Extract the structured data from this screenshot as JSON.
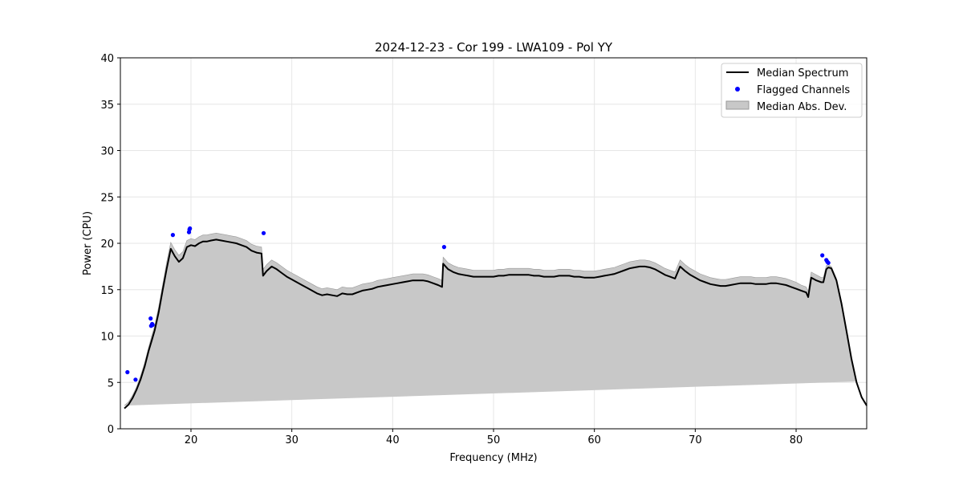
{
  "chart_data": {
    "type": "line",
    "title": "2024-12-23 - Cor 199 - LWA109 - Pol YY",
    "xlabel": "Frequency (MHz)",
    "ylabel": "Power (CPU)",
    "xlim": [
      13.0,
      87.0
    ],
    "ylim": [
      0,
      40
    ],
    "xticks": [
      20,
      30,
      40,
      50,
      60,
      70,
      80
    ],
    "yticks": [
      0,
      5,
      10,
      15,
      20,
      25,
      30,
      35,
      40
    ],
    "grid": true,
    "legend_position": "top-right",
    "colors": {
      "median": "#000000",
      "flagged": "#0000ff",
      "mad": "#c8c8c8",
      "mad_edge": "#999999"
    },
    "legend": [
      {
        "label": "Median Spectrum",
        "kind": "line"
      },
      {
        "label": "Flagged Channels",
        "kind": "marker"
      },
      {
        "label": "Median Abs. Dev.",
        "kind": "patch"
      }
    ],
    "series": [
      {
        "name": "Median Spectrum",
        "x": [
          13.4,
          13.8,
          14.2,
          14.6,
          15.0,
          15.4,
          15.8,
          16.1,
          16.4,
          16.8,
          17.2,
          17.6,
          18.0,
          18.4,
          18.8,
          19.2,
          19.6,
          20.0,
          20.4,
          20.8,
          21.2,
          21.6,
          22.0,
          22.5,
          23.0,
          23.5,
          24.0,
          24.5,
          25.0,
          25.5,
          26.0,
          26.5,
          27.0,
          27.15,
          27.5,
          28.0,
          28.5,
          29.0,
          29.5,
          30.0,
          30.5,
          31.0,
          31.5,
          32.0,
          32.5,
          33.0,
          33.5,
          34.0,
          34.5,
          35.0,
          35.5,
          36.0,
          36.5,
          37.0,
          37.5,
          38.0,
          38.5,
          39.0,
          39.5,
          40.0,
          40.5,
          41.0,
          41.5,
          42.0,
          42.5,
          43.0,
          43.5,
          44.0,
          44.5,
          44.9,
          45.0,
          45.5,
          46.0,
          46.5,
          47.0,
          47.5,
          48.0,
          48.5,
          49.0,
          49.5,
          50.0,
          50.5,
          51.0,
          51.5,
          52.0,
          52.5,
          53.0,
          53.5,
          54.0,
          54.5,
          55.0,
          55.5,
          56.0,
          56.5,
          57.0,
          57.5,
          58.0,
          58.5,
          59.0,
          59.5,
          60.0,
          60.5,
          61.0,
          61.5,
          62.0,
          62.5,
          63.0,
          63.5,
          64.0,
          64.5,
          65.0,
          65.5,
          66.0,
          66.5,
          67.0,
          67.5,
          68.0,
          68.5,
          69.0,
          69.5,
          70.0,
          70.5,
          71.0,
          71.5,
          72.0,
          72.5,
          73.0,
          73.5,
          74.0,
          74.5,
          75.0,
          75.5,
          76.0,
          76.5,
          77.0,
          77.5,
          78.0,
          78.5,
          79.0,
          79.5,
          80.0,
          80.5,
          81.0,
          81.2,
          81.5,
          82.0,
          82.5,
          82.7,
          83.0,
          83.2,
          83.5,
          84.0,
          84.5,
          85.0,
          85.5,
          86.0,
          86.5,
          87.0
        ],
        "y": [
          2.2,
          2.6,
          3.3,
          4.2,
          5.3,
          6.7,
          8.4,
          9.5,
          10.6,
          12.6,
          15.0,
          17.3,
          19.4,
          18.6,
          18.0,
          18.4,
          19.6,
          19.8,
          19.7,
          20.0,
          20.2,
          20.2,
          20.3,
          20.4,
          20.3,
          20.2,
          20.1,
          20.0,
          19.8,
          19.6,
          19.2,
          19.0,
          18.9,
          16.5,
          17.0,
          17.5,
          17.2,
          16.8,
          16.4,
          16.1,
          15.8,
          15.5,
          15.2,
          14.9,
          14.6,
          14.4,
          14.5,
          14.4,
          14.3,
          14.6,
          14.5,
          14.5,
          14.7,
          14.9,
          15.0,
          15.1,
          15.3,
          15.4,
          15.5,
          15.6,
          15.7,
          15.8,
          15.9,
          16.0,
          16.0,
          16.0,
          15.9,
          15.7,
          15.5,
          15.3,
          17.8,
          17.2,
          16.9,
          16.7,
          16.6,
          16.5,
          16.4,
          16.4,
          16.4,
          16.4,
          16.4,
          16.5,
          16.5,
          16.6,
          16.6,
          16.6,
          16.6,
          16.6,
          16.5,
          16.5,
          16.4,
          16.4,
          16.4,
          16.5,
          16.5,
          16.5,
          16.4,
          16.4,
          16.3,
          16.3,
          16.3,
          16.4,
          16.5,
          16.6,
          16.7,
          16.9,
          17.1,
          17.3,
          17.4,
          17.5,
          17.5,
          17.4,
          17.2,
          16.9,
          16.6,
          16.4,
          16.2,
          17.5,
          17.0,
          16.6,
          16.3,
          16.0,
          15.8,
          15.6,
          15.5,
          15.4,
          15.4,
          15.5,
          15.6,
          15.7,
          15.7,
          15.7,
          15.6,
          15.6,
          15.6,
          15.7,
          15.7,
          15.6,
          15.5,
          15.3,
          15.1,
          14.9,
          14.7,
          14.2,
          16.3,
          16.0,
          15.8,
          15.8,
          17.2,
          17.4,
          17.3,
          16.0,
          13.5,
          10.5,
          7.5,
          5.0,
          3.4,
          2.5
        ]
      }
    ],
    "mad_width": [
      0.3,
      0.3,
      0.3,
      0.3,
      0.4,
      0.4,
      0.4,
      0.5,
      0.5,
      0.6,
      0.6,
      0.7,
      0.7,
      0.7,
      0.7,
      0.7,
      0.7,
      0.7,
      0.7,
      0.7,
      0.7,
      0.7,
      0.7,
      0.7,
      0.7,
      0.7,
      0.7,
      0.7,
      0.7,
      0.7,
      0.7,
      0.7,
      0.7,
      0.7,
      0.7,
      0.7,
      0.7,
      0.7,
      0.7,
      0.7,
      0.7,
      0.7,
      0.7,
      0.7,
      0.7,
      0.7,
      0.7,
      0.7,
      0.7,
      0.7,
      0.7,
      0.7,
      0.7,
      0.7,
      0.7,
      0.7,
      0.7,
      0.7,
      0.7,
      0.7,
      0.7,
      0.7,
      0.7,
      0.7,
      0.7,
      0.7,
      0.7,
      0.7,
      0.7,
      0.7,
      0.7,
      0.7,
      0.7,
      0.7,
      0.7,
      0.7,
      0.7,
      0.7,
      0.7,
      0.7,
      0.7,
      0.7,
      0.7,
      0.7,
      0.7,
      0.7,
      0.7,
      0.7,
      0.7,
      0.7,
      0.7,
      0.7,
      0.7,
      0.7,
      0.7,
      0.7,
      0.7,
      0.7,
      0.7,
      0.7,
      0.7,
      0.7,
      0.7,
      0.7,
      0.7,
      0.7,
      0.7,
      0.7,
      0.7,
      0.7,
      0.7,
      0.7,
      0.7,
      0.7,
      0.7,
      0.7,
      0.7,
      0.7,
      0.7,
      0.7,
      0.7,
      0.7,
      0.7,
      0.7,
      0.7,
      0.7,
      0.7,
      0.7,
      0.7,
      0.7,
      0.7,
      0.7,
      0.7,
      0.7,
      0.7,
      0.7,
      0.7,
      0.7,
      0.7,
      0.7,
      0.7,
      0.6,
      0.6,
      0.6,
      0.6,
      0.6,
      0.5,
      0.5,
      0.4,
      0.3,
      0.2,
      0.2,
      0.1,
      0.1,
      0.1,
      0.1
    ],
    "flagged": {
      "name": "Flagged Channels",
      "x": [
        13.7,
        14.5,
        16.0,
        16.05,
        16.15,
        16.2,
        18.2,
        19.8,
        19.85,
        19.9,
        27.2,
        45.1,
        82.6,
        83.0,
        83.1,
        83.2
      ],
      "y": [
        6.1,
        5.3,
        11.9,
        11.1,
        11.3,
        11.2,
        20.9,
        21.2,
        21.5,
        21.6,
        21.1,
        19.6,
        18.7,
        18.2,
        18.0,
        17.9
      ]
    }
  }
}
